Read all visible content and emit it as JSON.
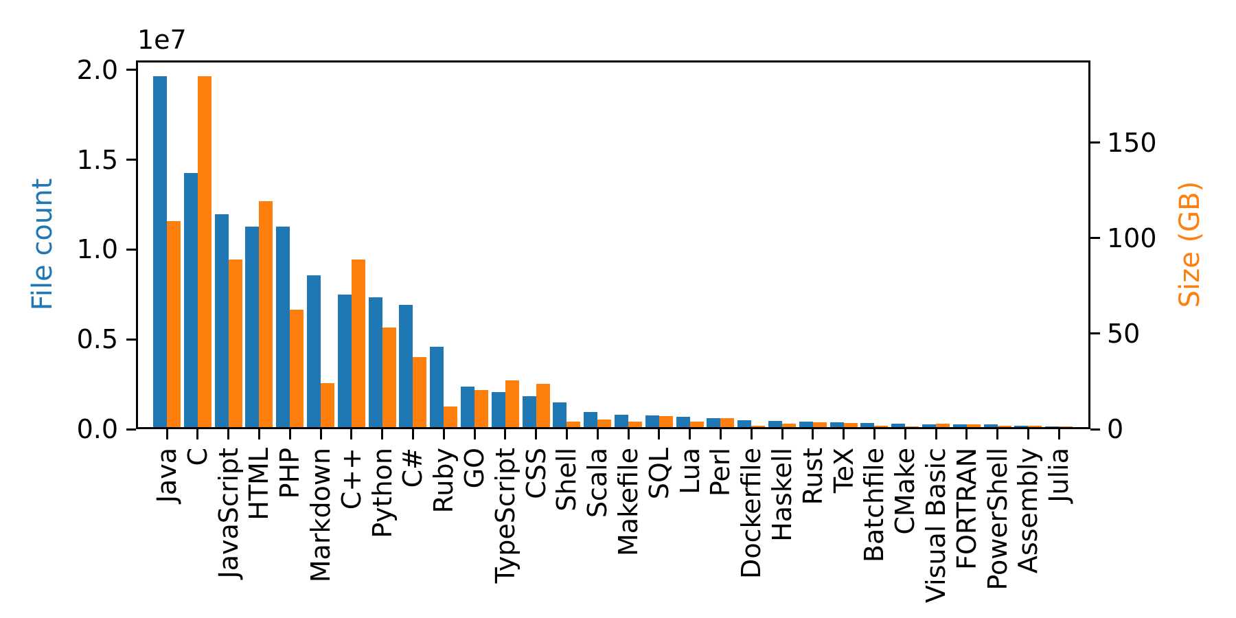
{
  "figure": {
    "background": "#ffffff",
    "axis_color": "#000000"
  },
  "chart_data": {
    "type": "bar",
    "title": "",
    "xlabel": "",
    "ylabel_left": "File count",
    "ylabel_right": "Size (GB)",
    "left_axis_color": "#1f77b4",
    "right_axis_color": "#ff7f0e",
    "offset_text": "1e7",
    "grid": false,
    "legend": false,
    "categories": [
      "Java",
      "C",
      "JavaScript",
      "HTML",
      "PHP",
      "Markdown",
      "C++",
      "Python",
      "C#",
      "Ruby",
      "GO",
      "TypeScript",
      "CSS",
      "Shell",
      "Scala",
      "Makefile",
      "SQL",
      "Lua",
      "Perl",
      "Dockerfile",
      "Haskell",
      "Rust",
      "TeX",
      "Batchfile",
      "CMake",
      "Visual Basic",
      "FORTRAN",
      "PowerShell",
      "Assembly",
      "Julia"
    ],
    "series": [
      {
        "name": "File count",
        "axis": "left",
        "color": "#1f77b4",
        "values": [
          19548190,
          14143113,
          11839883,
          11178557,
          11177610,
          8464626,
          7380520,
          7226626,
          6811652,
          4473331,
          2265436,
          1940406,
          1734406,
          1385648,
          835755,
          679430,
          656671,
          578554,
          497949,
          366505,
          340623,
          322431,
          251015,
          236945,
          175282,
          155652,
          142038,
          136846,
          82905,
          58317
        ]
      },
      {
        "name": "Size (GB)",
        "axis": "right",
        "color": "#ff7f0e",
        "values": [
          107.7,
          183.83,
          87.82,
          118.12,
          61.41,
          23.09,
          87.73,
          52.03,
          36.83,
          10.95,
          19.28,
          24.59,
          22.67,
          3.01,
          3.87,
          2.92,
          5.67,
          2.81,
          4.7,
          0.71,
          1.85,
          2.68,
          2.15,
          0.7,
          0.54,
          1.91,
          1.62,
          0.69,
          0.78,
          0.29
        ]
      }
    ],
    "ylim_left": [
      0,
      20525600
    ],
    "ylim_right": [
      0,
      193.02
    ],
    "yticks_left": {
      "values": [
        0,
        5000000,
        10000000,
        15000000,
        20000000
      ],
      "labels": [
        "0.0",
        "0.5",
        "1.0",
        "1.5",
        "2.0"
      ]
    },
    "yticks_right": {
      "values": [
        0,
        50,
        100,
        150
      ],
      "labels": [
        "0",
        "50",
        "100",
        "150"
      ]
    }
  }
}
